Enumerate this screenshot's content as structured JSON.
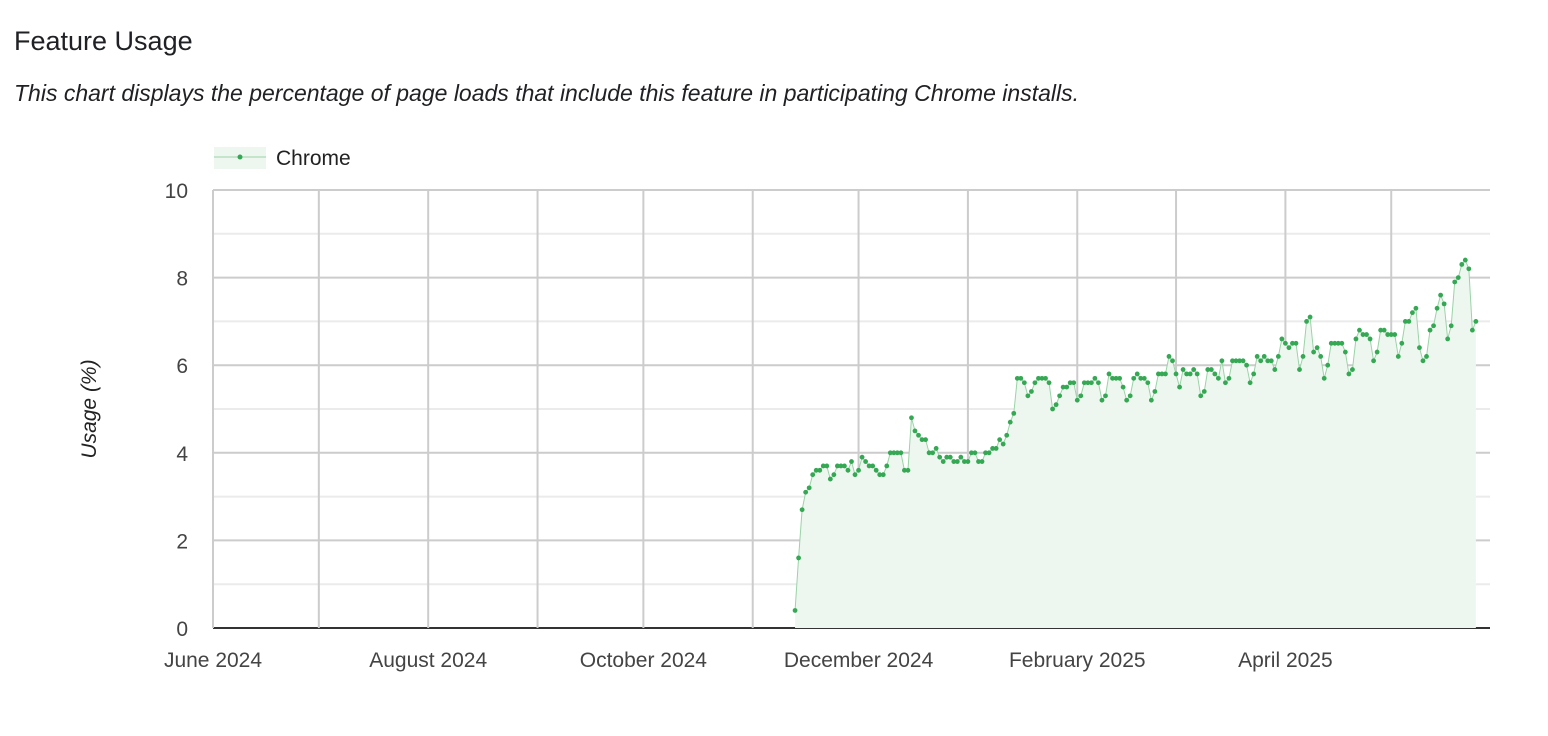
{
  "header": {
    "title": "Feature Usage",
    "subtitle": "This chart displays the percentage of page loads that include this feature in participating Chrome installs."
  },
  "chart_data": {
    "type": "area",
    "title": "",
    "xlabel": "",
    "ylabel": "Usage (%)",
    "ylim": [
      0,
      10
    ],
    "yticks": [
      "0",
      "2",
      "4",
      "6",
      "8",
      "10"
    ],
    "xlim": [
      "2024-06-01",
      "2025-05-29"
    ],
    "xticks": [
      {
        "date": "2024-06-01",
        "label": "June 2024"
      },
      {
        "date": "2024-07-01",
        "label": ""
      },
      {
        "date": "2024-08-01",
        "label": "August 2024"
      },
      {
        "date": "2024-09-01",
        "label": ""
      },
      {
        "date": "2024-10-01",
        "label": "October 2024"
      },
      {
        "date": "2024-11-01",
        "label": ""
      },
      {
        "date": "2024-12-01",
        "label": "December 2024"
      },
      {
        "date": "2025-01-01",
        "label": ""
      },
      {
        "date": "2025-02-01",
        "label": "February 2025"
      },
      {
        "date": "2025-03-01",
        "label": ""
      },
      {
        "date": "2025-04-01",
        "label": "April 2025"
      },
      {
        "date": "2025-05-01",
        "label": ""
      }
    ],
    "grid": true,
    "legend_position": "top-left",
    "series": [
      {
        "name": "Chrome",
        "color": "#34a853",
        "fill": "#eef7ef",
        "start": "2024-11-13",
        "frequency": "daily",
        "values": [
          0.4,
          1.6,
          2.7,
          3.1,
          3.2,
          3.5,
          3.6,
          3.6,
          3.7,
          3.7,
          3.4,
          3.5,
          3.7,
          3.7,
          3.7,
          3.6,
          3.8,
          3.5,
          3.6,
          3.9,
          3.8,
          3.7,
          3.7,
          3.6,
          3.5,
          3.5,
          3.7,
          4.0,
          4.0,
          4.0,
          4.0,
          3.6,
          3.6,
          4.8,
          4.5,
          4.4,
          4.3,
          4.3,
          4.0,
          4.0,
          4.1,
          3.9,
          3.8,
          3.9,
          3.9,
          3.8,
          3.8,
          3.9,
          3.8,
          3.8,
          4.0,
          4.0,
          3.8,
          3.8,
          4.0,
          4.0,
          4.1,
          4.1,
          4.3,
          4.2,
          4.4,
          4.7,
          4.9,
          5.7,
          5.7,
          5.6,
          5.3,
          5.4,
          5.6,
          5.7,
          5.7,
          5.7,
          5.6,
          5.0,
          5.1,
          5.3,
          5.5,
          5.5,
          5.6,
          5.6,
          5.2,
          5.3,
          5.6,
          5.6,
          5.6,
          5.7,
          5.6,
          5.2,
          5.3,
          5.8,
          5.7,
          5.7,
          5.7,
          5.5,
          5.2,
          5.3,
          5.7,
          5.8,
          5.7,
          5.7,
          5.6,
          5.2,
          5.4,
          5.8,
          5.8,
          5.8,
          6.2,
          6.1,
          5.8,
          5.5,
          5.9,
          5.8,
          5.8,
          5.9,
          5.8,
          5.3,
          5.4,
          5.9,
          5.9,
          5.8,
          5.7,
          6.1,
          5.6,
          5.7,
          6.1,
          6.1,
          6.1,
          6.1,
          6.0,
          5.6,
          5.8,
          6.2,
          6.1,
          6.2,
          6.1,
          6.1,
          5.9,
          6.2,
          6.6,
          6.5,
          6.4,
          6.5,
          6.5,
          5.9,
          6.2,
          7.0,
          7.1,
          6.3,
          6.4,
          6.2,
          5.7,
          6.0,
          6.5,
          6.5,
          6.5,
          6.5,
          6.3,
          5.8,
          5.9,
          6.6,
          6.8,
          6.7,
          6.7,
          6.6,
          6.1,
          6.3,
          6.8,
          6.8,
          6.7,
          6.7,
          6.7,
          6.2,
          6.5,
          7.0,
          7.0,
          7.2,
          7.3,
          6.4,
          6.1,
          6.2,
          6.8,
          6.9,
          7.3,
          7.6,
          7.4,
          6.6,
          6.9,
          7.9,
          8.0,
          8.3,
          8.4,
          8.2,
          6.8,
          7.0
        ]
      }
    ]
  }
}
